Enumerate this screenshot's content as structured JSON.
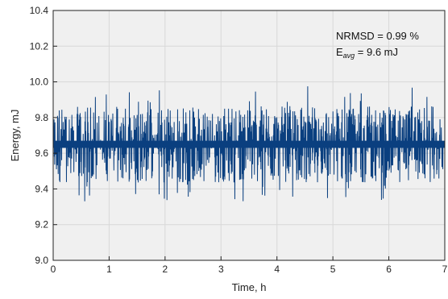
{
  "chart_data": {
    "type": "line",
    "title": "",
    "xlabel": "Time, h",
    "ylabel": "Energy, mJ",
    "xlim": [
      0,
      7
    ],
    "ylim": [
      9.0,
      10.4
    ],
    "xticks": [
      "0",
      "1",
      "2",
      "3",
      "4",
      "5",
      "6",
      "7"
    ],
    "yticks": [
      "9.0",
      "9.2",
      "9.4",
      "9.6",
      "9.8",
      "10.0",
      "10.2",
      "10.4"
    ],
    "grid": true,
    "series": [
      {
        "color": "#0a3f7f",
        "mean": 9.65,
        "band_low": 9.43,
        "band_high": 9.88,
        "peak_max": 10.01,
        "peak_min": 9.33
      }
    ],
    "annotations": {
      "nrmsd": "NRMSD = 0.99 %",
      "eavg_main": "E",
      "eavg_sub": "avg",
      "eavg_value": " = 9.6 mJ"
    }
  },
  "colors": {
    "plot_background": "#f0f0f0",
    "grid": "#d8d8d8",
    "series": "#0a3f7f"
  }
}
